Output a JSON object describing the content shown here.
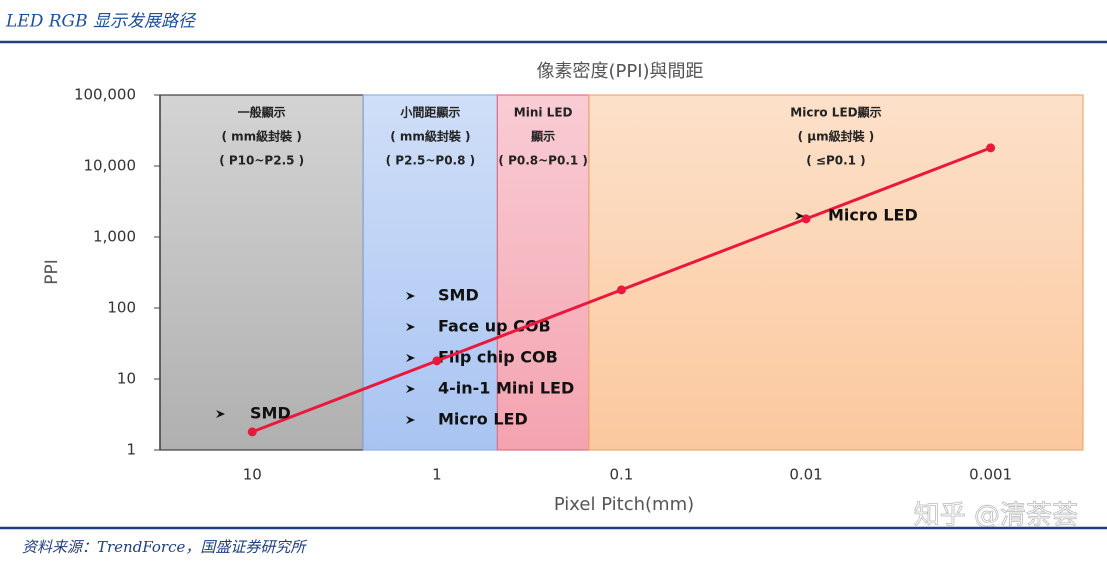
{
  "header": "LED RGB 显示发展路径",
  "footer": "资料来源：TrendForce，国盛证券研究所",
  "watermark": "知乎 @清荼荟",
  "chart_data": {
    "type": "line",
    "title": "像素密度(PPI)與間距",
    "x_label": "Pixel Pitch(mm)",
    "y_label": "PPI",
    "x": [
      10,
      1,
      0.1,
      0.01,
      0.001
    ],
    "values": [
      1.8,
      18,
      180,
      1800,
      18000
    ],
    "color": "#e8193c",
    "log_x": true,
    "log_y": true,
    "x_reversed": true,
    "xlim": [
      31.6,
      0.000316
    ],
    "ylim": [
      1,
      100000
    ],
    "xticks": [
      10,
      1,
      0.1,
      0.01,
      0.001
    ],
    "yticks": [
      1,
      10,
      100,
      {
        "value": 1000,
        "label": "1,000"
      },
      {
        "value": 10000,
        "label": "10,000"
      },
      {
        "value": 100000,
        "label": "100,000"
      }
    ],
    "regions": [
      {
        "from": 31.6,
        "to": 2.5,
        "color": "#b0b0b0",
        "border": "#404040",
        "labels": [
          "一般顯示",
          "( mm級封裝 )",
          "( P10~P2.5 )"
        ]
      },
      {
        "from": 2.5,
        "to": 0.47,
        "color": "#a9c4f2",
        "border": "#8fb0e8",
        "labels": [
          "小間距顯示",
          "( mm級封裝 )",
          "( P2.5~P0.8 )"
        ]
      },
      {
        "from": 0.47,
        "to": 0.15,
        "color": "#f4a3b0",
        "border": "#e56f84",
        "labels": [
          "Mini LED",
          "顯示",
          "( P0.8~P0.1 )"
        ]
      },
      {
        "from": 0.15,
        "to": 0.000316,
        "color": "#fbc89e",
        "border": "#f0a870",
        "labels": [
          "Micro LED顯示",
          "( μm級封裝 )",
          "( ≤P0.1 )"
        ]
      }
    ],
    "annotations": [
      "SMD",
      "Micro LED"
    ],
    "bullets": [
      "SMD",
      "Face up COB",
      "Flip chip COB",
      "4-in-1 Mini LED",
      "Micro LED"
    ]
  }
}
